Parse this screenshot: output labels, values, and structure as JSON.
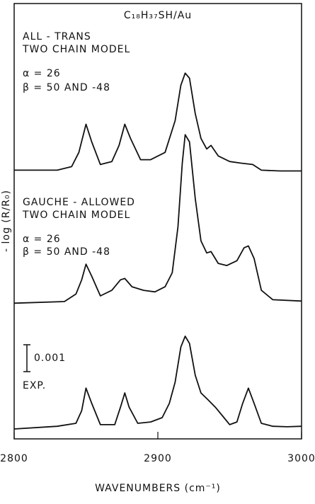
{
  "chart_data": {
    "type": "line",
    "title": "C₁₈H₃₇SH/Au",
    "xlabel": "WAVENUMBERS (cm⁻¹)",
    "ylabel": "- log (R/R₀)",
    "xlim": [
      2800,
      3000
    ],
    "xticks": [
      2800,
      2900,
      3000
    ],
    "ylim": [
      0,
      0.0162
    ],
    "scale_bar": 0.001,
    "color": "#111111",
    "annotations": [
      "ALL - TRANS",
      "TWO CHAIN MODEL",
      "α = 26",
      "β = 50 AND -48",
      "GAUCHE - ALLOWED",
      "TWO CHAIN MODEL",
      "α = 26",
      "β = 50 AND -48",
      "EXP."
    ],
    "series": [
      {
        "x": [
          2800,
          2830,
          2840,
          2845,
          2850,
          2854,
          2860,
          2868,
          2873,
          2877,
          2881,
          2888,
          2895,
          2905,
          2912,
          2916,
          2919,
          2922,
          2926,
          2930,
          2934,
          2937,
          2942,
          2950,
          2958,
          2966,
          2972,
          2985,
          3000
        ],
        "values": [
          0.01,
          0.01,
          0.01013,
          0.01066,
          0.01171,
          0.01105,
          0.01021,
          0.01032,
          0.01092,
          0.01171,
          0.01118,
          0.01039,
          0.01039,
          0.01066,
          0.01184,
          0.01316,
          0.01361,
          0.01342,
          0.01211,
          0.01118,
          0.01079,
          0.01092,
          0.01053,
          0.01032,
          0.01026,
          0.01021,
          0.01,
          0.00997,
          0.00997
        ]
      },
      {
        "x": [
          2800,
          2835,
          2843,
          2847,
          2850,
          2854,
          2860,
          2868,
          2874,
          2877,
          2882,
          2890,
          2898,
          2905,
          2910,
          2914,
          2917,
          2919,
          2922,
          2926,
          2930,
          2934,
          2937,
          2942,
          2948,
          2955,
          2960,
          2963,
          2967,
          2972,
          2980,
          3000
        ],
        "values": [
          0.00505,
          0.00511,
          0.00539,
          0.00592,
          0.0065,
          0.00605,
          0.00532,
          0.00553,
          0.00592,
          0.00597,
          0.00566,
          0.00553,
          0.00547,
          0.00566,
          0.00618,
          0.00789,
          0.01026,
          0.01132,
          0.01105,
          0.00895,
          0.00737,
          0.00692,
          0.00697,
          0.00653,
          0.00645,
          0.00663,
          0.00711,
          0.00718,
          0.00671,
          0.00553,
          0.00518,
          0.00513
        ]
      },
      {
        "x": [
          2800,
          2830,
          2843,
          2847,
          2850,
          2854,
          2860,
          2870,
          2874,
          2877,
          2880,
          2886,
          2895,
          2903,
          2908,
          2912,
          2916,
          2919,
          2922,
          2926,
          2930,
          2935,
          2940,
          2946,
          2950,
          2955,
          2959,
          2963,
          2967,
          2972,
          2980,
          2990,
          3000
        ],
        "values": [
          0.00037,
          0.00047,
          0.00058,
          0.00105,
          0.00189,
          0.00132,
          0.00053,
          0.00053,
          0.00118,
          0.00171,
          0.00118,
          0.00058,
          0.00063,
          0.00079,
          0.00132,
          0.00211,
          0.00342,
          0.00382,
          0.00355,
          0.00237,
          0.00171,
          0.00145,
          0.00118,
          0.00079,
          0.00053,
          0.00063,
          0.00132,
          0.00189,
          0.00132,
          0.00058,
          0.00047,
          0.00045,
          0.00047
        ]
      }
    ]
  }
}
